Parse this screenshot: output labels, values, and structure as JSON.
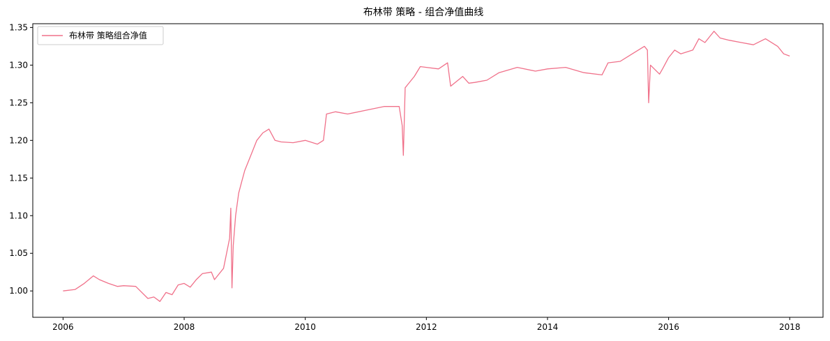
{
  "chart_data": {
    "type": "line",
    "title": "布林带 策略 - 组合净值曲线",
    "xlabel": "",
    "ylabel": "",
    "x_ticks": [
      "2006",
      "2008",
      "2010",
      "2012",
      "2014",
      "2016",
      "2018"
    ],
    "y_ticks": [
      "1.00",
      "1.05",
      "1.10",
      "1.15",
      "1.20",
      "1.25",
      "1.30",
      "1.35"
    ],
    "xlim": [
      2005.5,
      2018.55
    ],
    "ylim": [
      0.965,
      1.355
    ],
    "grid": false,
    "legend_position": "top-left",
    "series": [
      {
        "name": "布林带 策略组合净值",
        "color": "#f0718a",
        "x": [
          2006.0,
          2006.2,
          2006.35,
          2006.5,
          2006.6,
          2006.75,
          2006.9,
          2007.0,
          2007.2,
          2007.4,
          2007.5,
          2007.6,
          2007.7,
          2007.8,
          2007.9,
          2008.0,
          2008.1,
          2008.2,
          2008.3,
          2008.45,
          2008.5,
          2008.55,
          2008.65,
          2008.75,
          2008.77,
          2008.79,
          2008.81,
          2008.85,
          2008.9,
          2008.95,
          2009.0,
          2009.1,
          2009.2,
          2009.3,
          2009.4,
          2009.5,
          2009.6,
          2009.8,
          2010.0,
          2010.2,
          2010.3,
          2010.35,
          2010.5,
          2010.7,
          2011.0,
          2011.3,
          2011.55,
          2011.6,
          2011.62,
          2011.65,
          2011.7,
          2011.8,
          2011.9,
          2012.0,
          2012.2,
          2012.35,
          2012.4,
          2012.6,
          2012.7,
          2012.8,
          2013.0,
          2013.2,
          2013.5,
          2013.8,
          2014.0,
          2014.3,
          2014.6,
          2014.9,
          2015.0,
          2015.2,
          2015.4,
          2015.6,
          2015.65,
          2015.67,
          2015.7,
          2015.85,
          2015.9,
          2016.0,
          2016.1,
          2016.2,
          2016.4,
          2016.5,
          2016.6,
          2016.75,
          2016.85,
          2017.0,
          2017.2,
          2017.4,
          2017.6,
          2017.8,
          2017.9,
          2018.0
        ],
        "values": [
          1.0,
          1.002,
          1.01,
          1.02,
          1.015,
          1.01,
          1.006,
          1.007,
          1.006,
          0.99,
          0.992,
          0.986,
          0.998,
          0.995,
          1.008,
          1.01,
          1.005,
          1.015,
          1.023,
          1.025,
          1.015,
          1.02,
          1.03,
          1.07,
          1.11,
          1.004,
          1.06,
          1.1,
          1.13,
          1.145,
          1.16,
          1.18,
          1.2,
          1.21,
          1.215,
          1.2,
          1.198,
          1.197,
          1.2,
          1.195,
          1.2,
          1.235,
          1.238,
          1.235,
          1.24,
          1.245,
          1.245,
          1.22,
          1.18,
          1.27,
          1.275,
          1.285,
          1.298,
          1.297,
          1.295,
          1.303,
          1.272,
          1.285,
          1.276,
          1.277,
          1.28,
          1.29,
          1.297,
          1.292,
          1.295,
          1.297,
          1.29,
          1.287,
          1.303,
          1.305,
          1.315,
          1.325,
          1.32,
          1.25,
          1.3,
          1.288,
          1.295,
          1.31,
          1.32,
          1.315,
          1.32,
          1.335,
          1.33,
          1.345,
          1.336,
          1.333,
          1.33,
          1.327,
          1.335,
          1.325,
          1.315,
          1.312
        ]
      }
    ]
  }
}
